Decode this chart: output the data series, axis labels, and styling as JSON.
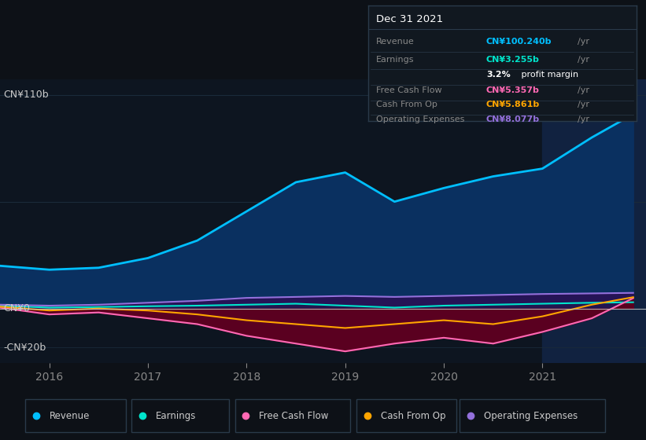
{
  "bg_color": "#0d1117",
  "plot_bg_color": "#0d1520",
  "highlight_bg": "#112240",
  "grid_color": "#1a2a3a",
  "title_box": {
    "date": "Dec 31 2021",
    "rows": [
      {
        "label": "Revenue",
        "value": "CN¥100.240b",
        "value_color": "#00bfff"
      },
      {
        "label": "Earnings",
        "value": "CN¥3.255b",
        "value_color": "#00e5cc"
      },
      {
        "label": "",
        "value": "3.2% profit margin",
        "value_color": "#ffffff"
      },
      {
        "label": "Free Cash Flow",
        "value": "CN¥5.357b",
        "value_color": "#ff69b4"
      },
      {
        "label": "Cash From Op",
        "value": "CN¥5.861b",
        "value_color": "#ffa500"
      },
      {
        "label": "Operating Expenses",
        "value": "CN¥8.077b",
        "value_color": "#9370db"
      }
    ]
  },
  "years": [
    2015.5,
    2016.0,
    2016.5,
    2017.0,
    2017.5,
    2018.0,
    2018.5,
    2019.0,
    2019.5,
    2020.0,
    2020.5,
    2021.0,
    2021.5,
    2021.92
  ],
  "revenue": [
    22,
    20,
    21,
    26,
    35,
    50,
    65,
    70,
    55,
    62,
    68,
    72,
    88,
    100
  ],
  "earnings": [
    1.5,
    0.5,
    0.8,
    1.2,
    1.5,
    2.0,
    2.5,
    1.5,
    0.5,
    1.5,
    2.0,
    2.5,
    3.0,
    3.255
  ],
  "free_cash_flow": [
    0.5,
    -3,
    -2,
    -5,
    -8,
    -14,
    -18,
    -22,
    -18,
    -15,
    -18,
    -12,
    -5,
    5.357
  ],
  "cash_from_op": [
    1.0,
    -1,
    0,
    -1,
    -3,
    -6,
    -8,
    -10,
    -8,
    -6,
    -8,
    -4,
    2,
    5.861
  ],
  "operating_expenses": [
    2.0,
    1.5,
    2.0,
    3.0,
    4.0,
    5.5,
    6.0,
    6.5,
    6.0,
    6.5,
    7.0,
    7.5,
    7.8,
    8.077
  ],
  "revenue_color": "#00bfff",
  "revenue_fill": "#0a3060",
  "earnings_color": "#00e5cc",
  "earnings_fill": "#003a35",
  "free_cash_flow_color": "#ff69b4",
  "free_cash_flow_fill": "#5a0020",
  "cash_from_op_color": "#ffa500",
  "operating_expenses_color": "#9370db",
  "operating_expenses_fill": "#2a1055",
  "highlight_x_start": 2021.0,
  "highlight_x_end": 2022.05,
  "xlim": [
    2015.5,
    2022.05
  ],
  "ylim": [
    -28,
    118
  ],
  "xlabel_ticks": [
    2016,
    2017,
    2018,
    2019,
    2020,
    2021
  ],
  "legend_items": [
    {
      "label": "Revenue",
      "color": "#00bfff"
    },
    {
      "label": "Earnings",
      "color": "#00e5cc"
    },
    {
      "label": "Free Cash Flow",
      "color": "#ff69b4"
    },
    {
      "label": "Cash From Op",
      "color": "#ffa500"
    },
    {
      "label": "Operating Expenses",
      "color": "#9370db"
    }
  ]
}
